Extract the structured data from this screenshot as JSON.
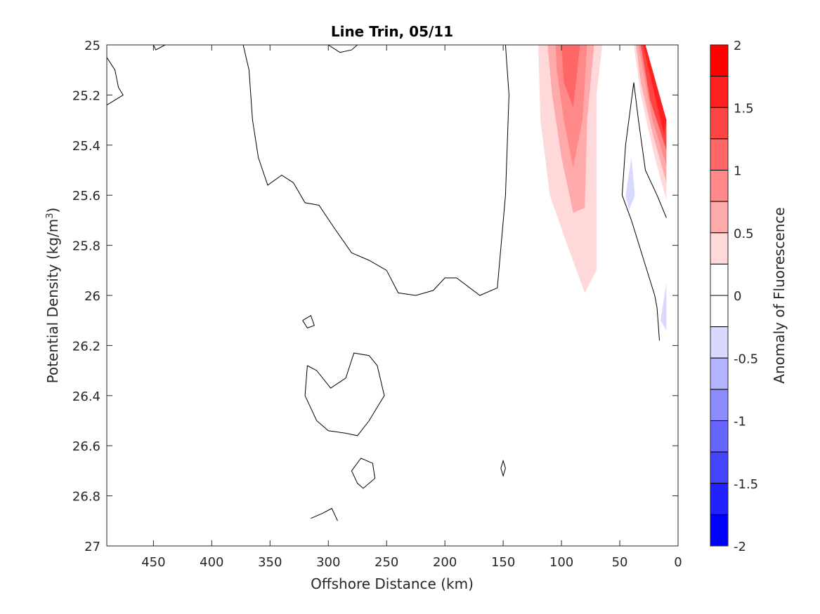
{
  "chart_data": {
    "type": "contour",
    "title": "Line Trin, 05/11",
    "xlabel": "Offshore Distance (km)",
    "ylabel_main": "Potential Density (kg/m",
    "ylabel_sup": "3",
    "ylabel_close": ")",
    "colorbar_label": "Anomaly of Fluorescence",
    "x_range": [
      490,
      0
    ],
    "x_ticks": [
      450,
      400,
      350,
      300,
      250,
      200,
      150,
      100,
      50,
      0
    ],
    "y_range": [
      25,
      27
    ],
    "y_ticks": [
      "25",
      "25.2",
      "25.4",
      "25.6",
      "25.8",
      "26",
      "26.2",
      "26.4",
      "26.6",
      "26.8",
      "27"
    ],
    "colorbar_range": [
      -2,
      2
    ],
    "colorbar_ticks": [
      "2",
      "1.5",
      "1",
      "0.5",
      "0",
      "-0.5",
      "-1",
      "-1.5",
      "-2"
    ],
    "colorbar_levels": [
      {
        "min": 1.75,
        "max": 2.0,
        "color": "#ff0000"
      },
      {
        "min": 1.5,
        "max": 1.75,
        "color": "#ff2020"
      },
      {
        "min": 1.25,
        "max": 1.5,
        "color": "#ff4444"
      },
      {
        "min": 1.0,
        "max": 1.25,
        "color": "#ff6666"
      },
      {
        "min": 0.75,
        "max": 1.0,
        "color": "#ff8888"
      },
      {
        "min": 0.5,
        "max": 0.75,
        "color": "#ffaaaa"
      },
      {
        "min": 0.25,
        "max": 0.5,
        "color": "#ffd9d9"
      },
      {
        "min": 0.0,
        "max": 0.25,
        "color": "#ffffff"
      },
      {
        "min": -0.25,
        "max": 0.0,
        "color": "#ffffff"
      },
      {
        "min": -0.5,
        "max": -0.25,
        "color": "#d9d9ff"
      },
      {
        "min": -0.75,
        "max": -0.5,
        "color": "#b3b3ff"
      },
      {
        "min": -1.0,
        "max": -0.75,
        "color": "#8c8cff"
      },
      {
        "min": -1.25,
        "max": -1.0,
        "color": "#6666ff"
      },
      {
        "min": -1.5,
        "max": -1.25,
        "color": "#4444ff"
      },
      {
        "min": -1.75,
        "max": -1.5,
        "color": "#2222ff"
      },
      {
        "min": -2.0,
        "max": -1.75,
        "color": "#0000ff"
      }
    ],
    "filled_regions": [
      {
        "level": 0.25,
        "color": "#ffd9d9",
        "points": [
          [
            120,
            25.0
          ],
          [
            65,
            25.0
          ],
          [
            70,
            25.2
          ],
          [
            70,
            25.9
          ],
          [
            80,
            25.99
          ],
          [
            95,
            25.8
          ],
          [
            110,
            25.6
          ],
          [
            118,
            25.3
          ]
        ]
      },
      {
        "level": 0.5,
        "color": "#ffaaaa",
        "points": [
          [
            112,
            25.0
          ],
          [
            72,
            25.0
          ],
          [
            78,
            25.3
          ],
          [
            80,
            25.65
          ],
          [
            90,
            25.67
          ],
          [
            100,
            25.45
          ],
          [
            108,
            25.2
          ]
        ]
      },
      {
        "level": 0.75,
        "color": "#ff8888",
        "points": [
          [
            105,
            25.0
          ],
          [
            78,
            25.0
          ],
          [
            82,
            25.3
          ],
          [
            90,
            25.49
          ],
          [
            98,
            25.3
          ],
          [
            104,
            25.1
          ]
        ]
      },
      {
        "level": 1.0,
        "color": "#ff6666",
        "points": [
          [
            100,
            25.0
          ],
          [
            84,
            25.0
          ],
          [
            90,
            25.25
          ],
          [
            98,
            25.15
          ]
        ]
      },
      {
        "level": 0.25,
        "color": "#ffd9d9",
        "points": [
          [
            38,
            25.0
          ],
          [
            28,
            25.0
          ],
          [
            10,
            25.3
          ],
          [
            10,
            25.62
          ],
          [
            20,
            25.45
          ],
          [
            32,
            25.2
          ]
        ]
      },
      {
        "level": 0.5,
        "color": "#ffaaaa",
        "points": [
          [
            36,
            25.0
          ],
          [
            28,
            25.0
          ],
          [
            10,
            25.3
          ],
          [
            10,
            25.55
          ],
          [
            22,
            25.35
          ],
          [
            32,
            25.15
          ]
        ]
      },
      {
        "level": 0.75,
        "color": "#ff8888",
        "points": [
          [
            34,
            25.0
          ],
          [
            28,
            25.0
          ],
          [
            10,
            25.3
          ],
          [
            10,
            25.48
          ],
          [
            22,
            25.3
          ],
          [
            30,
            25.1
          ]
        ]
      },
      {
        "level": 1.25,
        "color": "#ff4444",
        "points": [
          [
            32,
            25.0
          ],
          [
            28,
            25.0
          ],
          [
            10,
            25.3
          ],
          [
            10,
            25.42
          ],
          [
            24,
            25.22
          ]
        ]
      },
      {
        "level": 1.5,
        "color": "#ff2020",
        "points": [
          [
            30,
            25.0
          ],
          [
            28,
            25.0
          ],
          [
            10,
            25.3
          ],
          [
            12,
            25.36
          ]
        ]
      },
      {
        "level": -0.25,
        "color": "#d9d9ff",
        "points": [
          [
            40,
            25.45
          ],
          [
            45,
            25.6
          ],
          [
            42,
            25.66
          ],
          [
            37,
            25.6
          ]
        ]
      },
      {
        "level": -0.25,
        "color": "#d9d9ff",
        "points": [
          [
            10,
            25.95
          ],
          [
            15,
            26.1
          ],
          [
            10,
            26.14
          ]
        ]
      }
    ],
    "zero_contours": [
      {
        "points": [
          [
            490,
            25.05
          ],
          [
            483,
            25.1
          ],
          [
            480,
            25.17
          ],
          [
            476,
            25.2
          ],
          [
            490,
            25.24
          ]
        ]
      },
      {
        "points": [
          [
            450,
            25.0
          ],
          [
            448,
            25.02
          ],
          [
            440,
            25.0
          ]
        ]
      },
      {
        "points": [
          [
            373,
            25.0
          ],
          [
            368,
            25.1
          ],
          [
            365,
            25.3
          ],
          [
            360,
            25.45
          ],
          [
            352,
            25.56
          ],
          [
            340,
            25.52
          ],
          [
            330,
            25.55
          ],
          [
            320,
            25.63
          ],
          [
            308,
            25.64
          ],
          [
            295,
            25.73
          ],
          [
            280,
            25.83
          ],
          [
            265,
            25.86
          ],
          [
            250,
            25.9
          ],
          [
            240,
            25.99
          ],
          [
            225,
            26.0
          ],
          [
            210,
            25.98
          ],
          [
            200,
            25.93
          ],
          [
            190,
            25.93
          ],
          [
            170,
            26.0
          ],
          [
            155,
            25.97
          ],
          [
            148,
            25.6
          ],
          [
            145,
            25.2
          ],
          [
            148,
            25.0
          ]
        ]
      },
      {
        "points": [
          [
            300,
            25.0
          ],
          [
            290,
            25.03
          ],
          [
            280,
            25.02
          ],
          [
            275,
            25.0
          ]
        ]
      },
      {
        "points": [
          [
            322,
            26.1
          ],
          [
            315,
            26.08
          ],
          [
            312,
            26.12
          ],
          [
            318,
            26.13
          ],
          [
            322,
            26.1
          ]
        ]
      },
      {
        "points": [
          [
            318,
            26.28
          ],
          [
            310,
            26.3
          ],
          [
            298,
            26.37
          ],
          [
            285,
            26.33
          ],
          [
            278,
            26.23
          ],
          [
            265,
            26.24
          ],
          [
            258,
            26.28
          ],
          [
            252,
            26.4
          ],
          [
            265,
            26.5
          ],
          [
            275,
            26.56
          ],
          [
            285,
            26.55
          ],
          [
            300,
            26.54
          ],
          [
            310,
            26.5
          ],
          [
            320,
            26.4
          ],
          [
            318,
            26.28
          ]
        ]
      },
      {
        "points": [
          [
            280,
            26.7
          ],
          [
            272,
            26.65
          ],
          [
            262,
            26.67
          ],
          [
            260,
            26.73
          ],
          [
            270,
            26.77
          ],
          [
            275,
            26.75
          ],
          [
            280,
            26.7
          ]
        ]
      },
      {
        "points": [
          [
            152,
            26.69
          ],
          [
            150,
            26.72
          ],
          [
            148,
            26.69
          ],
          [
            150,
            26.66
          ],
          [
            152,
            26.69
          ]
        ]
      },
      {
        "points": [
          [
            315,
            26.89
          ],
          [
            305,
            26.87
          ],
          [
            297,
            26.85
          ],
          [
            292,
            26.9
          ]
        ]
      },
      {
        "points": [
          [
            38,
            25.15
          ],
          [
            45,
            25.4
          ],
          [
            48,
            25.6
          ],
          [
            40,
            25.7
          ],
          [
            30,
            25.85
          ],
          [
            20,
            26.0
          ],
          [
            18,
            26.05
          ],
          [
            16,
            26.18
          ]
        ]
      },
      {
        "points": [
          [
            38,
            25.15
          ],
          [
            34,
            25.3
          ],
          [
            28,
            25.5
          ],
          [
            18,
            25.6
          ],
          [
            10,
            25.69
          ]
        ]
      }
    ]
  }
}
